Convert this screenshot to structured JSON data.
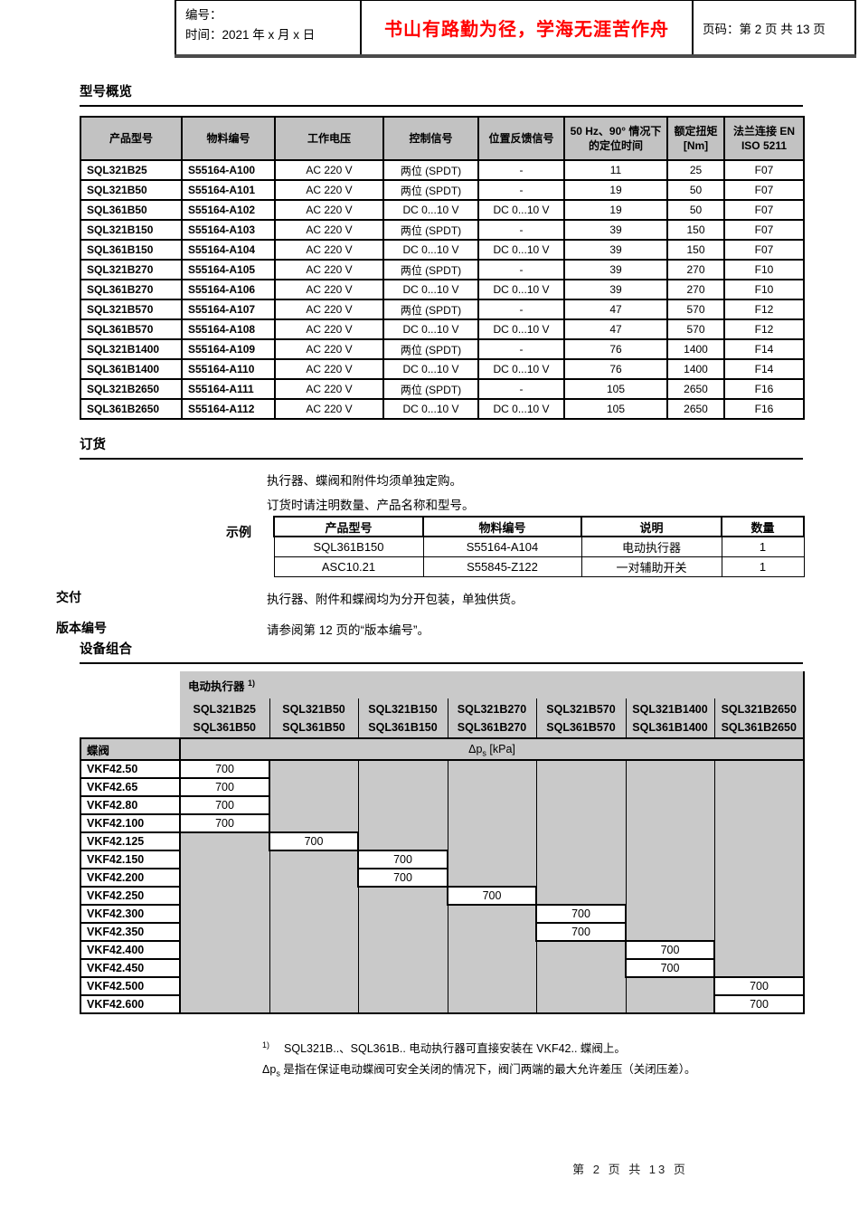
{
  "doc_header": {
    "number_label": "编号：",
    "time_label": "时间：2021 年 x 月 x 日",
    "slogan": "书山有路勤为径，学海无涯苦作舟",
    "page_info": "页码：第 2 页  共 13 页"
  },
  "sections": {
    "overview_title": "型号概览",
    "ordering_title": "订货",
    "combos_title": "设备组合"
  },
  "model_table": {
    "headers": [
      "产品型号",
      "物料编号",
      "工作电压",
      "控制信号",
      "位置反馈信号",
      "50 Hz、90° 情况下的定位时间",
      "额定扭矩 [Nm]",
      "法兰连接 EN ISO 5211"
    ],
    "rows": [
      [
        "SQL321B25",
        "S55164-A100",
        "AC 220 V",
        "两位 (SPDT)",
        "-",
        "11",
        "25",
        "F07"
      ],
      [
        "SQL321B50",
        "S55164-A101",
        "AC 220 V",
        "两位 (SPDT)",
        "-",
        "19",
        "50",
        "F07"
      ],
      [
        "SQL361B50",
        "S55164-A102",
        "AC 220 V",
        "DC 0...10 V",
        "DC 0...10 V",
        "19",
        "50",
        "F07"
      ],
      [
        "SQL321B150",
        "S55164-A103",
        "AC 220 V",
        "两位 (SPDT)",
        "-",
        "39",
        "150",
        "F07"
      ],
      [
        "SQL361B150",
        "S55164-A104",
        "AC 220 V",
        "DC 0...10 V",
        "DC 0...10 V",
        "39",
        "150",
        "F07"
      ],
      [
        "SQL321B270",
        "S55164-A105",
        "AC 220 V",
        "两位 (SPDT)",
        "-",
        "39",
        "270",
        "F10"
      ],
      [
        "SQL361B270",
        "S55164-A106",
        "AC 220 V",
        "DC 0...10 V",
        "DC 0...10 V",
        "39",
        "270",
        "F10"
      ],
      [
        "SQL321B570",
        "S55164-A107",
        "AC 220 V",
        "两位 (SPDT)",
        "-",
        "47",
        "570",
        "F12"
      ],
      [
        "SQL361B570",
        "S55164-A108",
        "AC 220 V",
        "DC 0...10 V",
        "DC 0...10 V",
        "47",
        "570",
        "F12"
      ],
      [
        "SQL321B1400",
        "S55164-A109",
        "AC 220 V",
        "两位 (SPDT)",
        "-",
        "76",
        "1400",
        "F14"
      ],
      [
        "SQL361B1400",
        "S55164-A110",
        "AC 220 V",
        "DC 0...10 V",
        "DC 0...10 V",
        "76",
        "1400",
        "F14"
      ],
      [
        "SQL321B2650",
        "S55164-A111",
        "AC 220 V",
        "两位 (SPDT)",
        "-",
        "105",
        "2650",
        "F16"
      ],
      [
        "SQL361B2650",
        "S55164-A112",
        "AC 220 V",
        "DC 0...10 V",
        "DC 0...10 V",
        "105",
        "2650",
        "F16"
      ]
    ]
  },
  "ordering": {
    "note1": "执行器、蝶阀和附件均须单独定购。",
    "note2": "订货时请注明数量、产品名称和型号。",
    "example_label": "示例",
    "example_table": {
      "headers": [
        "产品型号",
        "物料编号",
        "说明",
        "数量"
      ],
      "rows": [
        [
          "SQL361B150",
          "S55164-A104",
          "电动执行器",
          "1"
        ],
        [
          "ASC10.21",
          "S55845-Z122",
          "一对辅助开关",
          "1"
        ]
      ]
    },
    "delivery_label": "交付",
    "delivery_text": "执行器、附件和蝶阀均为分开包装，单独供货。",
    "revision_label": "版本编号",
    "revision_text": "请参阅第 12 页的“版本编号”。"
  },
  "combos": {
    "actuator_header": "电动执行器",
    "actuator_sup": "1)",
    "columns": [
      {
        "top": "SQL321B25",
        "bottom": "SQL361B50"
      },
      {
        "top": "SQL321B50",
        "bottom": "SQL361B50"
      },
      {
        "top": "SQL321B150",
        "bottom": "SQL361B150"
      },
      {
        "top": "SQL321B270",
        "bottom": "SQL361B270"
      },
      {
        "top": "SQL321B570",
        "bottom": "SQL361B570"
      },
      {
        "top": "SQL321B1400",
        "bottom": "SQL361B1400"
      },
      {
        "top": "SQL321B2650",
        "bottom": "SQL361B2650"
      }
    ],
    "valve_label": "蝶阀",
    "dp_label_prefix": "Δp",
    "dp_label_sub": "s",
    "dp_label_suffix": " [kPa]",
    "value": "700",
    "rows": [
      {
        "valve": "VKF42.50",
        "col": 0
      },
      {
        "valve": "VKF42.65",
        "col": 0
      },
      {
        "valve": "VKF42.80",
        "col": 0
      },
      {
        "valve": "VKF42.100",
        "col": 0
      },
      {
        "valve": "VKF42.125",
        "col": 1
      },
      {
        "valve": "VKF42.150",
        "col": 2
      },
      {
        "valve": "VKF42.200",
        "col": 2
      },
      {
        "valve": "VKF42.250",
        "col": 3
      },
      {
        "valve": "VKF42.300",
        "col": 4
      },
      {
        "valve": "VKF42.350",
        "col": 4
      },
      {
        "valve": "VKF42.400",
        "col": 5
      },
      {
        "valve": "VKF42.450",
        "col": 5
      },
      {
        "valve": "VKF42.500",
        "col": 6
      },
      {
        "valve": "VKF42.600",
        "col": 6
      }
    ]
  },
  "footnotes": {
    "fn1_marker": "1)",
    "fn1_text": "SQL321B..、SQL361B.. 电动执行器可直接安装在 VKF42.. 蝶阀上。",
    "fn2_prefix": "Δp",
    "fn2_sub": "s",
    "fn2_text": " 是指在保证电动蝶阀可安全关闭的情况下，阀门两端的最大允许差压（关闭压差）。"
  },
  "footer": {
    "page_text": "第 2 页 共 13 页"
  },
  "colors": {
    "accent_red": "#ff0000",
    "header_gray": "#c2c2c2",
    "matrix_gray": "#c9c9c9"
  }
}
